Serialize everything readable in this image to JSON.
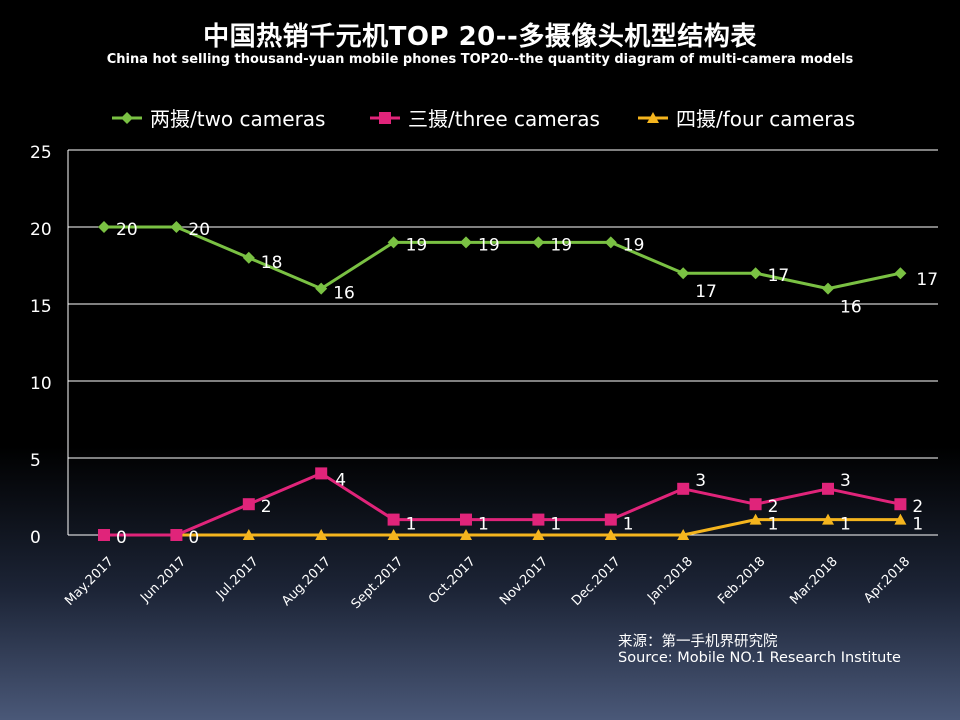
{
  "title": "中国热销千元机TOP 20--多摄像头机型结构表",
  "subtitle": "China hot selling thousand-yuan mobile phones TOP20--the quantity diagram of multi-camera models",
  "source": {
    "cn": "来源：第一手机界研究院",
    "en": "Source: Mobile NO.1 Research Institute"
  },
  "chart_data": {
    "type": "line",
    "categories": [
      "May.2017",
      "Jun.2017",
      "Jul.2017",
      "Aug.2017",
      "Sept.2017",
      "Oct.2017",
      "Nov.2017",
      "Dec.2017",
      "Jan.2018",
      "Feb.2018",
      "Mar.2018",
      "Apr.2018"
    ],
    "series": [
      {
        "name": "两摄/two cameras",
        "color": "#7ac143",
        "marker": "diamond",
        "values": [
          20,
          20,
          18,
          16,
          19,
          19,
          19,
          19,
          17,
          17,
          16,
          17
        ]
      },
      {
        "name": "三摄/three cameras",
        "color": "#e0247a",
        "marker": "square",
        "values": [
          0,
          0,
          2,
          4,
          1,
          1,
          1,
          1,
          3,
          2,
          3,
          2
        ]
      },
      {
        "name": "四摄/four cameras",
        "color": "#f5b51e",
        "marker": "triangle",
        "values": [
          0,
          0,
          0,
          0,
          0,
          0,
          0,
          0,
          0,
          1,
          1,
          1
        ]
      }
    ],
    "yticks": [
      0,
      5,
      10,
      15,
      20,
      25
    ],
    "ylim": [
      0,
      25
    ],
    "grid": true,
    "legend": "top",
    "xlabel": "",
    "ylabel": ""
  }
}
